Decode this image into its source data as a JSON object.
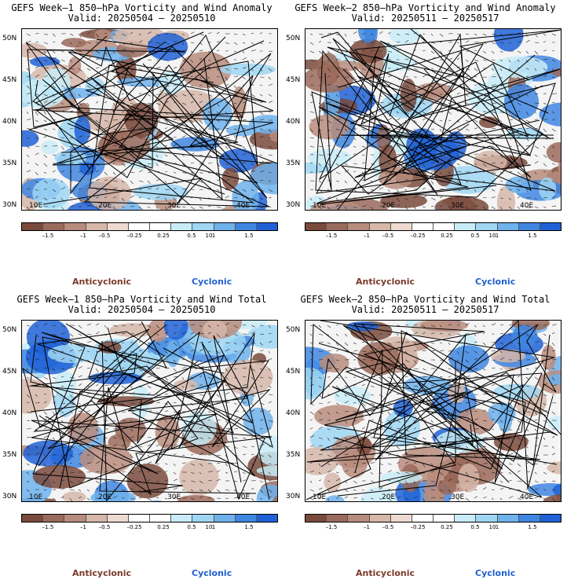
{
  "panels": [
    {
      "title": "GEFS Week–1 850–hPa Vorticity and Wind Anomaly",
      "valid": "Valid: 20250504 – 20250510"
    },
    {
      "title": "GEFS Week–2 850–hPa Vorticity and Wind Anomaly",
      "valid": "Valid: 20250511 – 20250517"
    },
    {
      "title": "GEFS Week–1 850–hPa Vorticity and Wind Total",
      "valid": "Valid: 20250504 – 20250510"
    },
    {
      "title": "GEFS Week–2 850–hPa Vorticity and Wind Total",
      "valid": "Valid: 20250511 – 20250517"
    }
  ],
  "lat_labels": [
    "50N",
    "45N",
    "40N",
    "35N",
    "30N"
  ],
  "lon_labels": [
    "10E",
    "20E",
    "30E",
    "40E"
  ],
  "colorbar": {
    "tick_labels": [
      "–1.5",
      "–1",
      "–0.5",
      "–0.25",
      "0.25",
      "0.5",
      "1",
      "1.5"
    ],
    "scale_label": "10",
    "colors": [
      "#7a4a3c",
      "#9a6a5a",
      "#b88c7c",
      "#d6b7a9",
      "#eedad0",
      "#ffffff",
      "#ffffff",
      "#c8ecf7",
      "#9fd6f3",
      "#6fb2ec",
      "#3f86e0",
      "#2062d6"
    ]
  },
  "legend": {
    "anticyclonic": "Anticyclonic",
    "cyclonic": "Cyclonic"
  },
  "colors": {
    "anticyclonic_text": "#7a3a2a",
    "cyclonic_text": "#1f5fd0"
  }
}
